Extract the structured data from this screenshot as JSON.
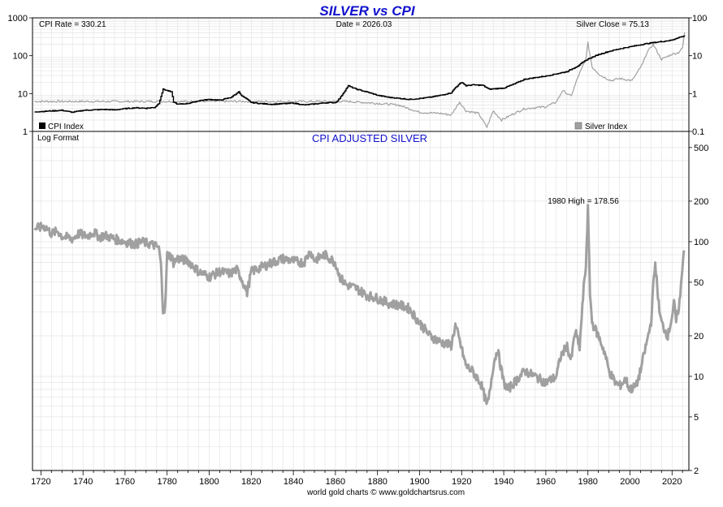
{
  "chart_data": {
    "type": "line",
    "title": "SILVER vs CPI",
    "footer": "world gold charts © www.goldchartsrus.com",
    "colors": {
      "title": "#1111cc",
      "cpi": "#000000",
      "silver": "#a0a0a0",
      "grid": "#e4e4e4",
      "axis": "#000000"
    },
    "x_axis": {
      "xlim": [
        1716,
        2028
      ],
      "ticks": [
        1720,
        1740,
        1760,
        1780,
        1800,
        1820,
        1840,
        1860,
        1880,
        1900,
        1920,
        1940,
        1960,
        1980,
        2000,
        2020
      ],
      "tick_labels": [
        "1720",
        "1740",
        "1760",
        "1780",
        "1800",
        "1820",
        "1840",
        "1860",
        "1880",
        "1900",
        "1920",
        "1940",
        "1960",
        "1980",
        "2000",
        "2020"
      ]
    },
    "top_panel": {
      "info": {
        "cpi_rate": "CPI Rate = 330.21",
        "date": "Date = 2026.03",
        "silver_close": "Silver Close = 75.13"
      },
      "left_axis": {
        "label_name": "CPI Index",
        "scale": "log",
        "ylim": [
          1,
          1000
        ],
        "ticks": [
          1,
          10,
          100,
          1000
        ],
        "tick_labels": [
          "1",
          "10",
          "100",
          "1000"
        ]
      },
      "right_axis": {
        "label_name": "Silver Index",
        "scale": "log",
        "ylim": [
          0.1,
          100
        ],
        "ticks": [
          0.1,
          1,
          10,
          100
        ],
        "tick_labels": [
          "0.1",
          "1",
          "10",
          "100"
        ]
      },
      "legend": {
        "cpi": "CPI Index",
        "silver": "Silver Index"
      },
      "series": [
        {
          "name": "CPI Index",
          "axis": "left",
          "x": [
            1717,
            1722,
            1726,
            1730,
            1735,
            1740,
            1745,
            1750,
            1755,
            1760,
            1765,
            1770,
            1774,
            1776,
            1777,
            1778,
            1779,
            1782,
            1783,
            1785,
            1790,
            1795,
            1800,
            1805,
            1810,
            1813,
            1814,
            1815,
            1818,
            1820,
            1825,
            1830,
            1835,
            1840,
            1845,
            1850,
            1855,
            1860,
            1862,
            1864,
            1866,
            1870,
            1875,
            1880,
            1885,
            1890,
            1895,
            1900,
            1905,
            1910,
            1915,
            1917,
            1920,
            1922,
            1925,
            1930,
            1933,
            1940,
            1945,
            1950,
            1960,
            1970,
            1975,
            1980,
            1985,
            1990,
            1995,
            2000,
            2005,
            2010,
            2015,
            2020,
            2022,
            2024,
            2026
          ],
          "values": [
            3.3,
            3.4,
            3.5,
            3.6,
            3.2,
            3.6,
            3.7,
            3.8,
            3.7,
            4.0,
            4.2,
            4.1,
            4.3,
            5.5,
            8.5,
            13,
            12.5,
            11,
            6,
            5.2,
            5.5,
            6.5,
            7,
            6.7,
            7.8,
            10,
            11.5,
            9,
            7,
            5.8,
            5.4,
            5.2,
            5.4,
            5.6,
            5.0,
            5.3,
            5.7,
            5.8,
            7.5,
            11,
            16,
            13,
            11,
            9,
            8,
            7.5,
            7,
            7.4,
            8,
            9,
            10.5,
            14.5,
            20,
            16,
            17,
            16.5,
            13,
            14,
            18,
            24,
            29,
            38,
            53,
            82,
            107,
            130,
            152,
            172,
            195,
            218,
            236,
            258,
            290,
            312,
            330
          ]
        },
        {
          "name": "Silver Index",
          "axis": "right",
          "x": [
            1717,
            1730,
            1750,
            1775,
            1790,
            1810,
            1830,
            1850,
            1860,
            1866,
            1880,
            1890,
            1900,
            1910,
            1915,
            1919,
            1922,
            1928,
            1932,
            1935,
            1939,
            1945,
            1950,
            1960,
            1965,
            1968,
            1972,
            1975,
            1979,
            1980,
            1982,
            1986,
            1991,
            1995,
            2001,
            2006,
            2008,
            2011,
            2015,
            2020,
            2023,
            2025,
            2026
          ],
          "values": [
            0.62,
            0.62,
            0.62,
            0.62,
            0.62,
            0.62,
            0.62,
            0.62,
            0.62,
            0.62,
            0.55,
            0.5,
            0.32,
            0.3,
            0.27,
            0.6,
            0.35,
            0.3,
            0.13,
            0.35,
            0.2,
            0.3,
            0.4,
            0.45,
            0.6,
            1.2,
            0.85,
            2.5,
            8,
            22,
            5,
            3,
            2.2,
            2.5,
            2.2,
            6,
            12,
            20,
            8,
            11,
            12,
            16,
            40
          ]
        }
      ]
    },
    "bottom_panel": {
      "title": "CPI ADJUSTED SILVER",
      "corner_label": "Log Format",
      "annotation": "1980 High = 178.56",
      "right_axis": {
        "scale": "log",
        "ylim": [
          2,
          550
        ],
        "ticks": [
          2,
          5,
          10,
          20,
          50,
          100,
          200,
          500
        ],
        "tick_labels": [
          "2",
          "5",
          "10",
          "20",
          "50",
          "100",
          "200",
          "500"
        ]
      },
      "series": [
        {
          "name": "CPI Adjusted Silver",
          "x": [
            1717,
            1722,
            1725,
            1728,
            1730,
            1735,
            1738,
            1740,
            1742,
            1745,
            1748,
            1750,
            1755,
            1760,
            1765,
            1768,
            1770,
            1774,
            1776,
            1777,
            1778,
            1779,
            1780,
            1782,
            1783,
            1785,
            1790,
            1795,
            1800,
            1805,
            1810,
            1813,
            1815,
            1818,
            1820,
            1825,
            1830,
            1835,
            1840,
            1845,
            1848,
            1850,
            1855,
            1860,
            1862,
            1865,
            1870,
            1875,
            1880,
            1885,
            1890,
            1895,
            1900,
            1905,
            1910,
            1915,
            1917,
            1920,
            1922,
            1925,
            1929,
            1931,
            1932,
            1933,
            1935,
            1937,
            1940,
            1942,
            1945,
            1950,
            1955,
            1960,
            1965,
            1967,
            1970,
            1972,
            1974,
            1976,
            1978,
            1979,
            1980,
            1981,
            1982,
            1985,
            1988,
            1990,
            1993,
            1995,
            1998,
            2000,
            2003,
            2005,
            2008,
            2010,
            2011,
            2012,
            2014,
            2015,
            2018,
            2020,
            2021,
            2022,
            2024,
            2025,
            2026
          ],
          "values": [
            125,
            130,
            115,
            120,
            110,
            105,
            115,
            112,
            110,
            118,
            108,
            112,
            105,
            100,
            96,
            100,
            98,
            94,
            90,
            70,
            32,
            31,
            80,
            78,
            70,
            75,
            72,
            60,
            55,
            60,
            58,
            62,
            55,
            42,
            60,
            65,
            70,
            75,
            72,
            70,
            85,
            73,
            80,
            70,
            55,
            48,
            45,
            40,
            38,
            35,
            34,
            32,
            25,
            20,
            18,
            17,
            24,
            16,
            12,
            11,
            9,
            7,
            6,
            7,
            12,
            16,
            9,
            8,
            9,
            11,
            10,
            9,
            10,
            14,
            17,
            13,
            22,
            16,
            45,
            65,
            178,
            42,
            25,
            20,
            15,
            11,
            9,
            8.5,
            9.5,
            8,
            8.5,
            11,
            18,
            25,
            45,
            70,
            30,
            25,
            20,
            28,
            35,
            25,
            40,
            70,
            95
          ]
        }
      ]
    }
  }
}
